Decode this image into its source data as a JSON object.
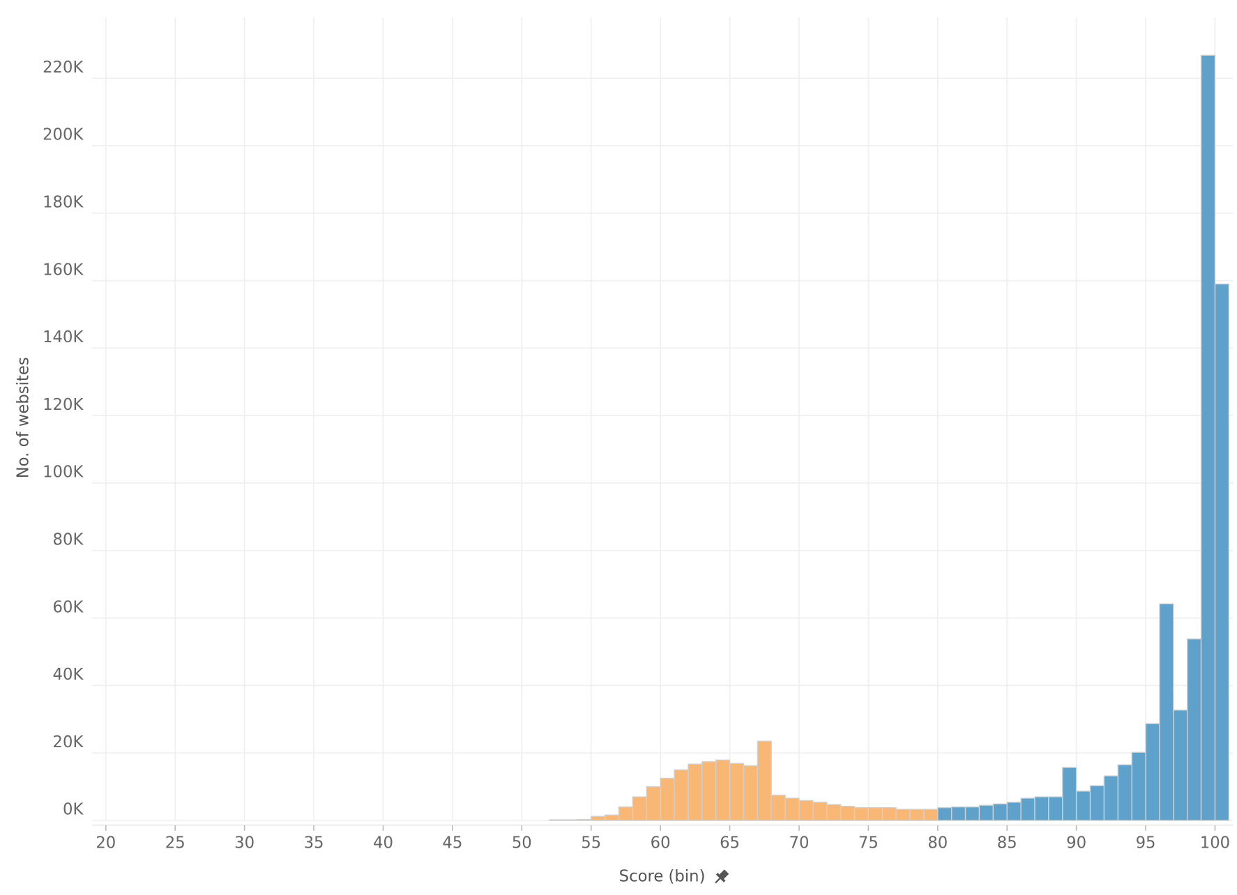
{
  "chart_data": {
    "type": "histogram",
    "x_label": "Score (bin)",
    "y_label": "No. of websites",
    "xlim": [
      19,
      101.3
    ],
    "ylim": [
      0,
      234000
    ],
    "xticks": [
      20,
      25,
      30,
      35,
      40,
      45,
      50,
      55,
      60,
      65,
      70,
      75,
      80,
      85,
      90,
      95,
      100
    ],
    "yticks": [
      {
        "value": 0,
        "label": "0K"
      },
      {
        "value": 20000,
        "label": "20K"
      },
      {
        "value": 40000,
        "label": "40K"
      },
      {
        "value": 60000,
        "label": "60K"
      },
      {
        "value": 80000,
        "label": "80K"
      },
      {
        "value": 100000,
        "label": "100K"
      },
      {
        "value": 120000,
        "label": "120K"
      },
      {
        "value": 140000,
        "label": "140K"
      },
      {
        "value": 160000,
        "label": "160K"
      },
      {
        "value": 180000,
        "label": "180K"
      },
      {
        "value": 200000,
        "label": "200K"
      },
      {
        "value": 220000,
        "label": "220K"
      }
    ],
    "grid": true,
    "series": [
      {
        "color": "#f9b775",
        "bins": [
          52,
          53,
          54,
          55,
          56,
          57,
          58,
          59,
          60,
          61,
          62,
          63,
          64,
          65,
          66,
          67,
          68,
          69,
          70,
          71,
          72,
          73,
          74,
          75,
          76,
          77,
          78,
          79,
          80
        ],
        "values": [
          200,
          200,
          300,
          1200,
          1600,
          4000,
          7000,
          10000,
          12500,
          15000,
          16700,
          17400,
          17900,
          16900,
          16200,
          23500,
          7500,
          6600,
          5900,
          5400,
          4700,
          4200,
          3800,
          3800,
          3800,
          3300,
          3300,
          3300
        ]
      },
      {
        "color": "#5ea2cc",
        "bins": [
          80,
          81,
          82,
          83,
          84,
          85,
          86,
          87,
          88,
          89,
          90,
          91,
          92,
          93,
          94,
          95,
          96,
          97,
          98,
          99,
          100,
          101
        ],
        "values": [
          3800,
          4000,
          4000,
          4500,
          4900,
          5400,
          6600,
          7000,
          7000,
          15700,
          8700,
          10300,
          13200,
          16500,
          20200,
          28700,
          64200,
          32700,
          53800,
          226800,
          159000
        ]
      }
    ]
  }
}
